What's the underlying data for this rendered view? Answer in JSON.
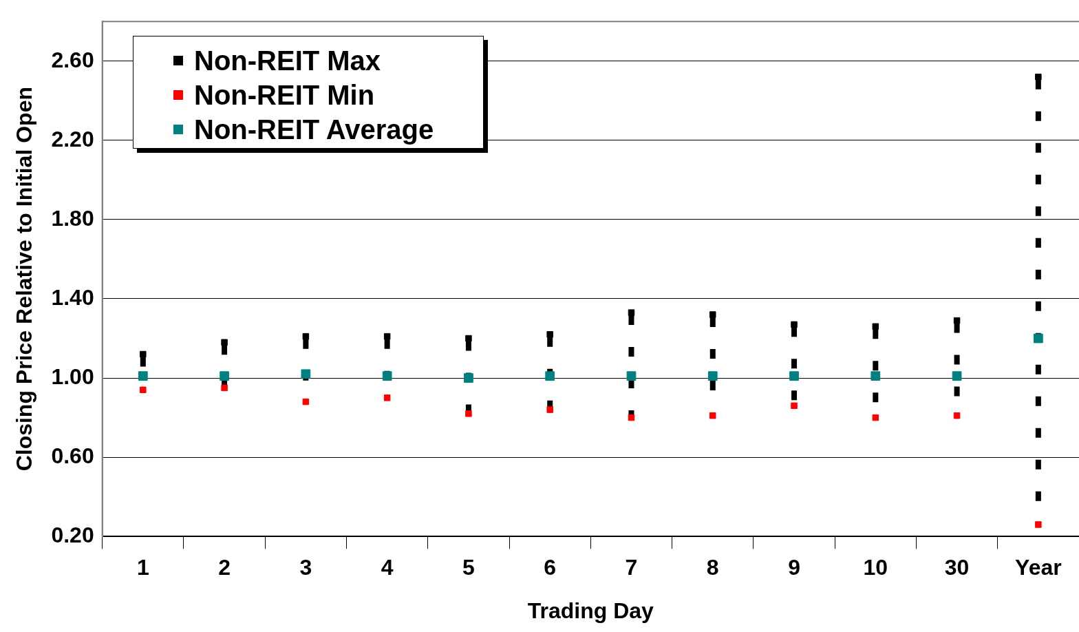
{
  "chart_data": {
    "type": "scatter",
    "xlabel": "Trading Day",
    "ylabel": "Closing Price Relative to Initial Open",
    "categories": [
      "1",
      "2",
      "3",
      "4",
      "5",
      "6",
      "7",
      "8",
      "9",
      "10",
      "30",
      "Year"
    ],
    "series": [
      {
        "name": "Non-REIT Max",
        "color": "#000000",
        "values": [
          1.12,
          1.18,
          1.21,
          1.21,
          1.2,
          1.22,
          1.33,
          1.32,
          1.27,
          1.26,
          1.29,
          2.52
        ]
      },
      {
        "name": "Non-REIT Min",
        "color": "#ff0000",
        "values": [
          0.94,
          0.95,
          0.88,
          0.9,
          0.82,
          0.84,
          0.8,
          0.81,
          0.86,
          0.8,
          0.81,
          0.26
        ]
      },
      {
        "name": "Non-REIT Average",
        "color": "#008080",
        "values": [
          1.01,
          1.01,
          1.02,
          1.01,
          1.0,
          1.01,
          1.01,
          1.01,
          1.01,
          1.01,
          1.01,
          1.2
        ]
      }
    ],
    "ylim": [
      0.2,
      2.8
    ],
    "yticks": [
      {
        "value": 0.2,
        "label": "0.20"
      },
      {
        "value": 0.6,
        "label": "0.60"
      },
      {
        "value": 1.0,
        "label": "1.00"
      },
      {
        "value": 1.4,
        "label": "1.40"
      },
      {
        "value": 1.8,
        "label": "1.80"
      },
      {
        "value": 2.2,
        "label": "2.20"
      },
      {
        "value": 2.6,
        "label": "2.60"
      }
    ],
    "grid": "y",
    "legend": "top left",
    "marker": "square"
  }
}
